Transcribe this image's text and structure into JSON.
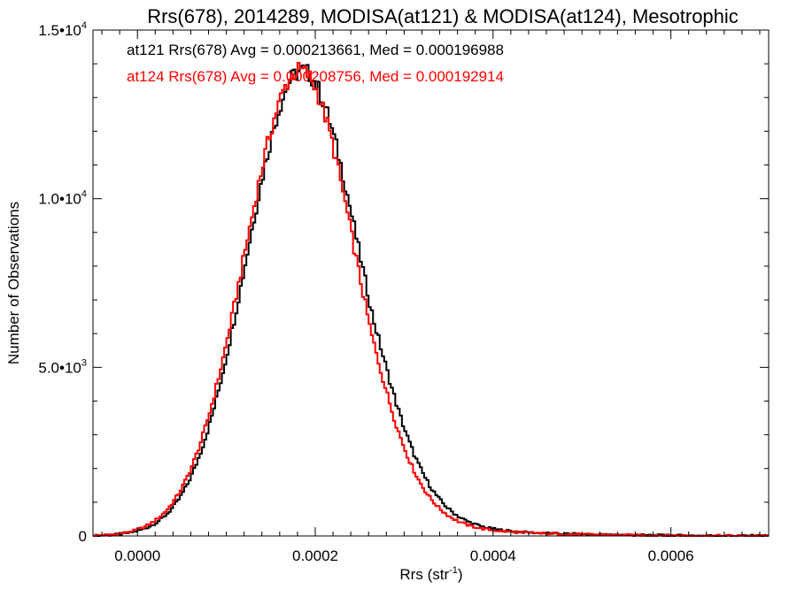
{
  "chart_data": {
    "type": "histogram-step",
    "title": "Rrs(678), 2014289, MODISA(at121) & MODISA(at124), Mesotrophic",
    "xlabel_base": "Rrs (str",
    "xlabel_sup": "-1",
    "xlabel_end": ")",
    "ylabel": "Number of Observations",
    "xlim": [
      -5e-05,
      0.00071
    ],
    "ylim": [
      0,
      15000
    ],
    "x_ticks": [
      {
        "value": 0.0,
        "label": "0.0000"
      },
      {
        "value": 0.0002,
        "label": "0.0002"
      },
      {
        "value": 0.0004,
        "label": "0.0004"
      },
      {
        "value": 0.0006,
        "label": "0.0006"
      }
    ],
    "y_ticks": [
      {
        "value": 0,
        "base": "0",
        "sup": ""
      },
      {
        "value": 5000,
        "base": "5.0•10",
        "sup": "3"
      },
      {
        "value": 10000,
        "base": "1.0•10",
        "sup": "4"
      },
      {
        "value": 15000,
        "base": "1.5•10",
        "sup": "4"
      }
    ],
    "series": [
      {
        "label": "at121 Rrs(678) Avg = 0.000213661, Med = 0.000196988",
        "color": "#000000",
        "center": 0.000185,
        "peak": 13800,
        "sigma_left": 6.15e-05,
        "sigma_right": 6.5e-05,
        "tail_amp": 700,
        "tail_decay": 9e-05
      },
      {
        "label": "at124 Rrs(678) Avg = 0.000208756, Med = 0.000192914",
        "color": "#ff0000",
        "center": 0.000183,
        "peak": 13800,
        "sigma_left": 6.25e-05,
        "sigma_right": 6.2e-05,
        "tail_amp": 650,
        "tail_decay": 9e-05
      }
    ]
  }
}
